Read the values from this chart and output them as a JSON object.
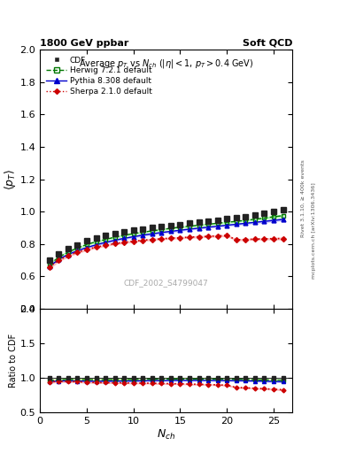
{
  "title_left": "1800 GeV ppbar",
  "title_right": "Soft QCD",
  "plot_title": "Average $p_T$ vs $N_{ch}$ ($|\\eta| < 1$, $p_T > 0.4$ GeV)",
  "xlabel": "$N_{ch}$",
  "ylabel_main": "$\\langle p_T \\rangle$",
  "ylabel_ratio": "Ratio to CDF",
  "watermark": "CDF_2002_S4799047",
  "right_label_top": "Rivet 3.1.10, ≥ 400k events",
  "right_label_bot": "mcplots.cern.ch [arXiv:1306.3436]",
  "xlim": [
    0,
    27
  ],
  "ylim_main": [
    0.4,
    2.0
  ],
  "ylim_ratio": [
    0.5,
    2.0
  ],
  "yticks_main": [
    0.4,
    0.6,
    0.8,
    1.0,
    1.2,
    1.4,
    1.6,
    1.8,
    2.0
  ],
  "yticks_ratio": [
    0.5,
    1.0,
    1.5,
    2.0
  ],
  "nch": [
    1,
    2,
    3,
    4,
    5,
    6,
    7,
    8,
    9,
    10,
    11,
    12,
    13,
    14,
    15,
    16,
    17,
    18,
    19,
    20,
    21,
    22,
    23,
    24,
    25,
    26
  ],
  "cdf_y": [
    0.7,
    0.74,
    0.77,
    0.795,
    0.82,
    0.838,
    0.853,
    0.865,
    0.876,
    0.886,
    0.893,
    0.9,
    0.908,
    0.914,
    0.92,
    0.928,
    0.934,
    0.94,
    0.948,
    0.955,
    0.962,
    0.97,
    0.98,
    0.99,
    1.0,
    1.01
  ],
  "cdf_err": [
    0.01,
    0.01,
    0.008,
    0.007,
    0.007,
    0.006,
    0.006,
    0.006,
    0.005,
    0.005,
    0.005,
    0.005,
    0.005,
    0.005,
    0.005,
    0.005,
    0.005,
    0.005,
    0.005,
    0.005,
    0.006,
    0.006,
    0.007,
    0.008,
    0.01,
    0.012
  ],
  "herwig_y": [
    0.672,
    0.718,
    0.75,
    0.775,
    0.797,
    0.814,
    0.828,
    0.842,
    0.854,
    0.864,
    0.873,
    0.881,
    0.889,
    0.897,
    0.904,
    0.91,
    0.916,
    0.922,
    0.928,
    0.934,
    0.94,
    0.946,
    0.953,
    0.96,
    0.968,
    0.975
  ],
  "herwig_err": [
    0.008,
    0.006,
    0.005,
    0.005,
    0.004,
    0.004,
    0.004,
    0.003,
    0.003,
    0.003,
    0.003,
    0.003,
    0.003,
    0.003,
    0.003,
    0.003,
    0.003,
    0.003,
    0.003,
    0.003,
    0.003,
    0.003,
    0.004,
    0.004,
    0.005,
    0.006
  ],
  "pythia_y": [
    0.66,
    0.705,
    0.735,
    0.758,
    0.778,
    0.795,
    0.81,
    0.823,
    0.835,
    0.845,
    0.855,
    0.863,
    0.871,
    0.878,
    0.885,
    0.892,
    0.898,
    0.904,
    0.91,
    0.916,
    0.922,
    0.928,
    0.934,
    0.94,
    0.946,
    0.952
  ],
  "pythia_err": [
    0.008,
    0.006,
    0.005,
    0.004,
    0.004,
    0.003,
    0.003,
    0.003,
    0.003,
    0.003,
    0.003,
    0.003,
    0.003,
    0.003,
    0.003,
    0.003,
    0.003,
    0.003,
    0.003,
    0.003,
    0.003,
    0.003,
    0.003,
    0.004,
    0.004,
    0.005
  ],
  "sherpa_y": [
    0.658,
    0.7,
    0.728,
    0.749,
    0.766,
    0.78,
    0.792,
    0.802,
    0.81,
    0.817,
    0.823,
    0.828,
    0.832,
    0.836,
    0.839,
    0.842,
    0.845,
    0.847,
    0.85,
    0.852,
    0.826,
    0.828,
    0.83,
    0.832,
    0.833,
    0.834
  ],
  "sherpa_err": [
    0.008,
    0.006,
    0.005,
    0.004,
    0.004,
    0.003,
    0.003,
    0.003,
    0.003,
    0.003,
    0.003,
    0.003,
    0.003,
    0.003,
    0.003,
    0.003,
    0.003,
    0.003,
    0.003,
    0.003,
    0.003,
    0.003,
    0.003,
    0.003,
    0.004,
    0.005
  ],
  "cdf_color": "#222222",
  "herwig_color": "#007700",
  "pythia_color": "#0000cc",
  "sherpa_color": "#cc0000",
  "herwig_band_color": "#bbffbb",
  "pythia_band_color": "#bbbbff",
  "sherpa_band_color": "#ffbbbb",
  "cdf_label": "CDF",
  "herwig_label": "Herwig 7.2.1 default",
  "pythia_label": "Pythia 8.308 default",
  "sherpa_label": "Sherpa 2.1.0 default"
}
